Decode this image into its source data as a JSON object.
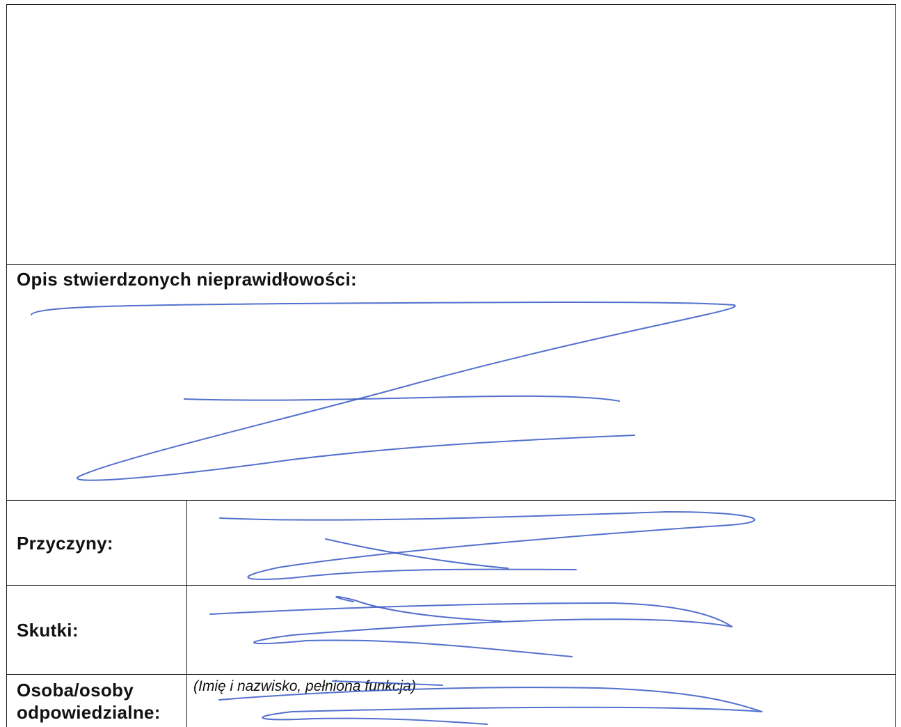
{
  "section_description": {
    "label": "Opis stwierdzonych nieprawidłowości:"
  },
  "section_causes": {
    "label": "Przyczyny:"
  },
  "section_effects": {
    "label": "Skutki:"
  },
  "section_responsible": {
    "label_line1": "Osoba/osoby",
    "label_line2": "odpowiedzialne:",
    "hint": "(Imię i nazwisko, pełniona funkcja)"
  },
  "ink_color": "#3557c4"
}
